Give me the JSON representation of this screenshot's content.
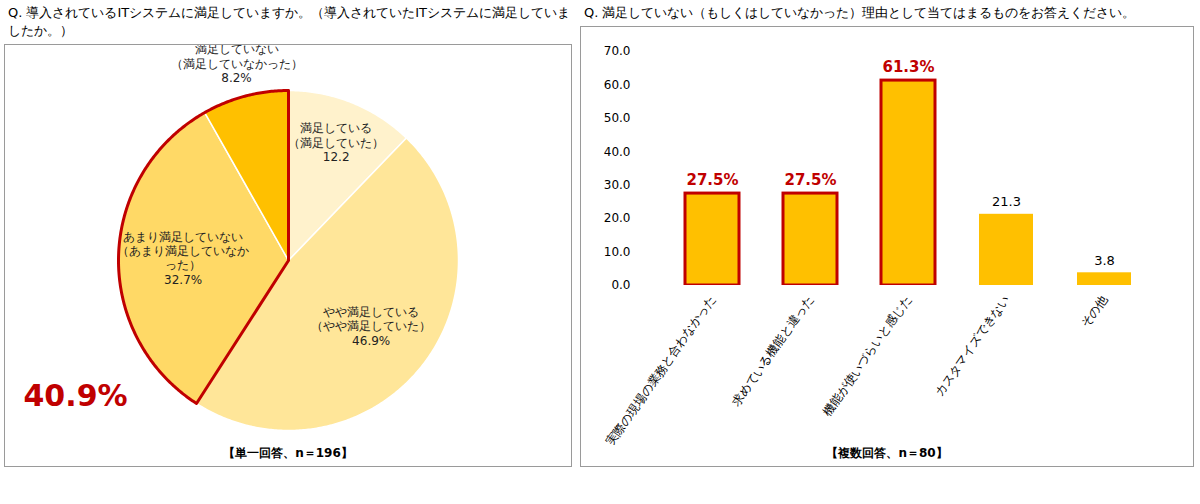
{
  "chart_data": [
    {
      "type": "pie",
      "title": "Q. 導入されているITシステムに満足していますか。（導入されていたITシステムに満足していましたか。）",
      "categories": [
        "満足している（満足していた）",
        "やや満足している（やや満足していた）",
        "あまり満足していない（あまり満足していなかった）",
        "満足していない（満足していなかった）"
      ],
      "values": [
        12.2,
        46.9,
        32.7,
        8.2
      ],
      "value_labels": [
        "12.2",
        "46.9%",
        "32.7%",
        "8.2%"
      ],
      "colors": [
        "#fff2cc",
        "#ffe699",
        "#ffd966",
        "#ffc000"
      ],
      "data_labels": true,
      "annotations": [
        {
          "text": "40.9%",
          "categories": [
            "あまり満足していない（あまり満足していなかった）",
            "満足していない（満足していなかった）"
          ]
        }
      ],
      "caption": "【単一回答、n＝196】"
    },
    {
      "type": "bar",
      "title": "Q. 満足していない（もしくはしていなかった）理由として当てはまるものをお答えください。",
      "categories": [
        "実際の現場の業務と合わなかった",
        "求めている機能と違った",
        "機能が使いづらいと感じた",
        "カスタマイズできない",
        "その他"
      ],
      "values": [
        27.5,
        27.5,
        61.3,
        21.3,
        3.8
      ],
      "value_labels": [
        "27.5%",
        "27.5%",
        "61.3%",
        "21.3",
        "3.8"
      ],
      "color": "#ffc000",
      "data_labels": true,
      "ylim": [
        0,
        70
      ],
      "yticks": [
        {
          "value": 0,
          "label": "0.0"
        },
        {
          "value": 10,
          "label": "10.0"
        },
        {
          "value": 20,
          "label": "20.0"
        },
        {
          "value": 30,
          "label": "30.0"
        },
        {
          "value": 40,
          "label": "40.0"
        },
        {
          "value": 50,
          "label": "50.0"
        },
        {
          "value": 60,
          "label": "60.0"
        },
        {
          "value": 70,
          "label": "70.0"
        }
      ],
      "grid": false,
      "annotations": [
        {
          "categories": [
            "実際の現場の業務と合わなかった",
            "求めている機能と違った",
            "機能が使いづらいと感じた"
          ]
        }
      ],
      "caption": "【複数回答、n＝80】"
    }
  ]
}
